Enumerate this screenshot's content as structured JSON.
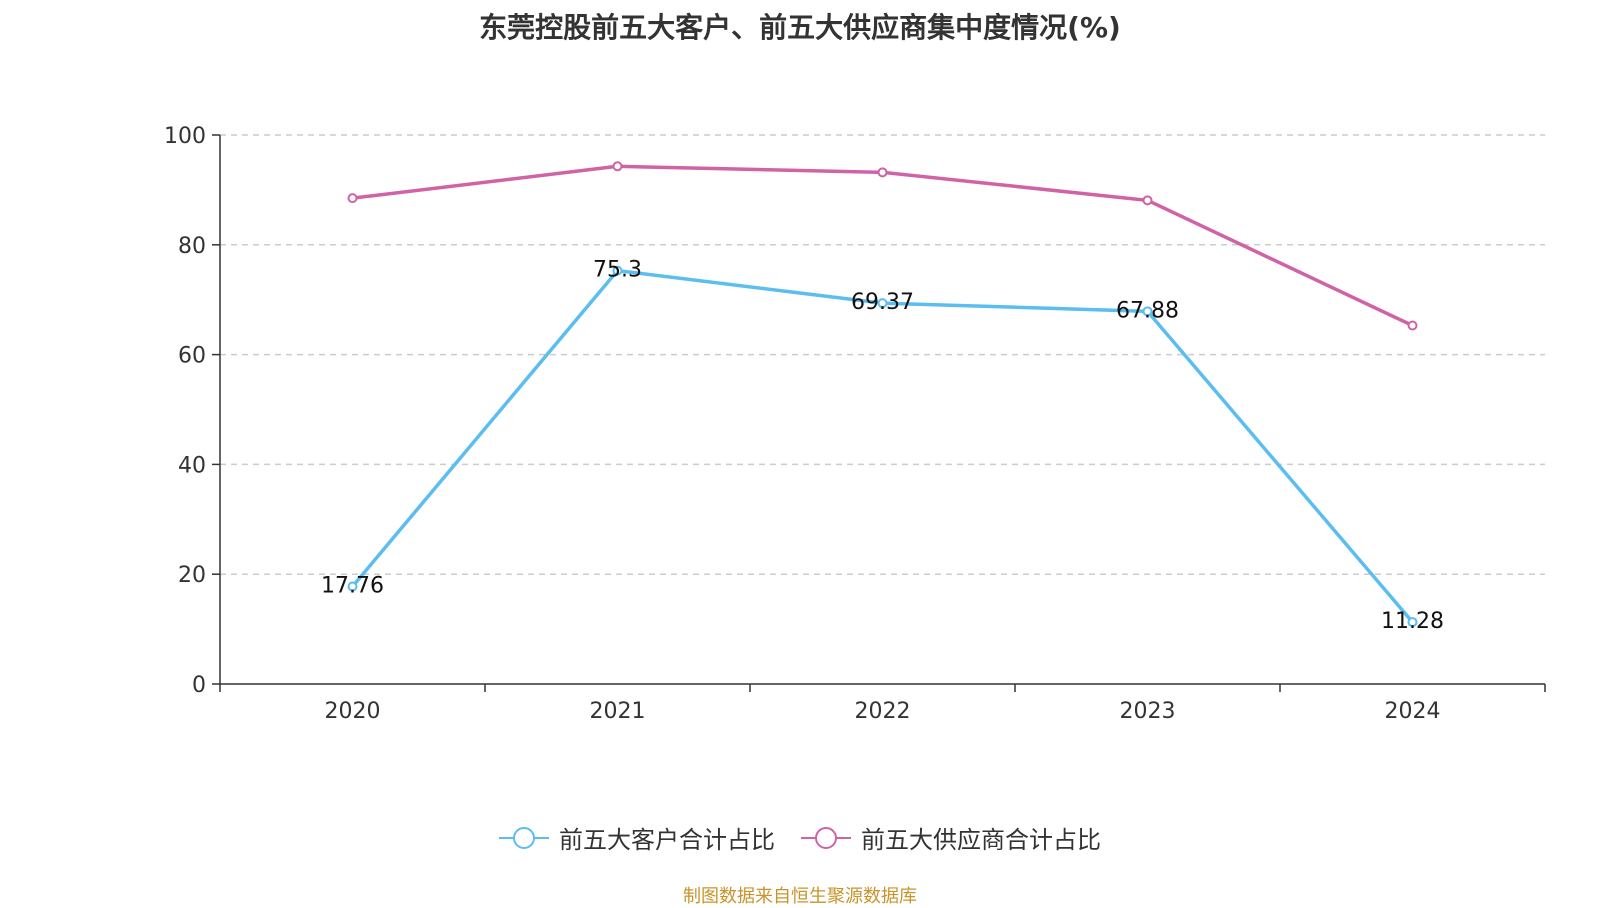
{
  "chart_data": {
    "type": "line",
    "title": "东莞控股前五大客户、前五大供应商集中度情况(%)",
    "categories": [
      "2020",
      "2021",
      "2022",
      "2023",
      "2024"
    ],
    "ylim": [
      0,
      100
    ],
    "yticks": [
      0,
      20,
      40,
      60,
      80,
      100
    ],
    "grid": true,
    "legend_position": "bottom",
    "series": [
      {
        "name": "前五大客户合计占比",
        "color": "#5bbdf0",
        "values": [
          17.76,
          75.3,
          69.37,
          67.88,
          11.28
        ],
        "data_labels": [
          "17.76",
          "75.3",
          "69.37",
          "67.88",
          "11.28"
        ]
      },
      {
        "name": "前五大供应商合计占比",
        "color": "#d062a6",
        "values": [
          88.5,
          94.3,
          93.2,
          88.1,
          65.3
        ]
      }
    ]
  },
  "source_note": "制图数据来自恒生聚源数据库"
}
